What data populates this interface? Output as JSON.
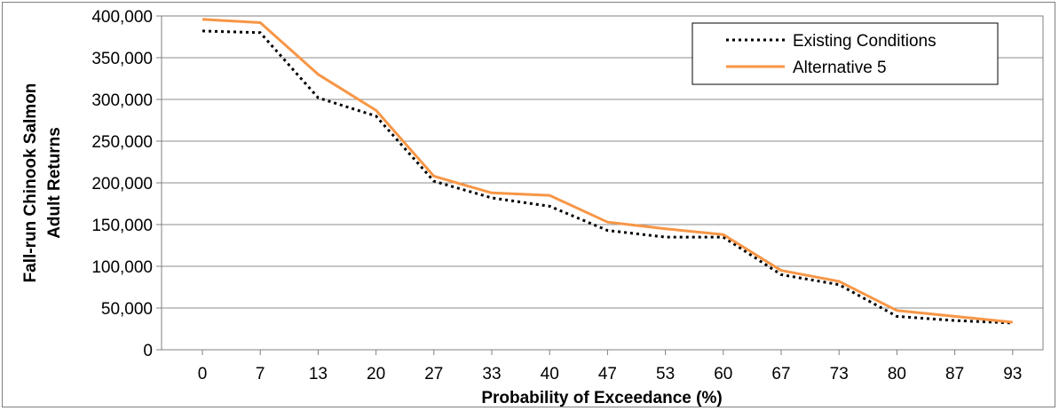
{
  "chart_data": {
    "type": "line",
    "title": "",
    "xlabel": "Probability of Exceedance (%)",
    "ylabel": [
      "Fall-run Chinook Salmon",
      "Adult Returns"
    ],
    "x": [
      "0",
      "7",
      "13",
      "20",
      "27",
      "33",
      "40",
      "47",
      "53",
      "60",
      "67",
      "73",
      "80",
      "87",
      "93"
    ],
    "yticks": [
      "0",
      "50,000",
      "100,000",
      "150,000",
      "200,000",
      "250,000",
      "300,000",
      "350,000",
      "400,000"
    ],
    "ylim": [
      0,
      400000
    ],
    "grid": true,
    "legend_position": "top-right",
    "series": [
      {
        "name": "Existing Conditions",
        "style": "dotted",
        "color": "#000000",
        "values": [
          382000,
          380000,
          302000,
          280000,
          202000,
          182000,
          172000,
          143000,
          135000,
          135000,
          90000,
          78000,
          40000,
          35000,
          32000
        ]
      },
      {
        "name": "Alternative 5",
        "style": "solid",
        "color": "#f79646",
        "values": [
          396000,
          392000,
          330000,
          287000,
          208000,
          188000,
          185000,
          153000,
          145000,
          138000,
          95000,
          82000,
          47000,
          40000,
          33000
        ]
      }
    ]
  }
}
